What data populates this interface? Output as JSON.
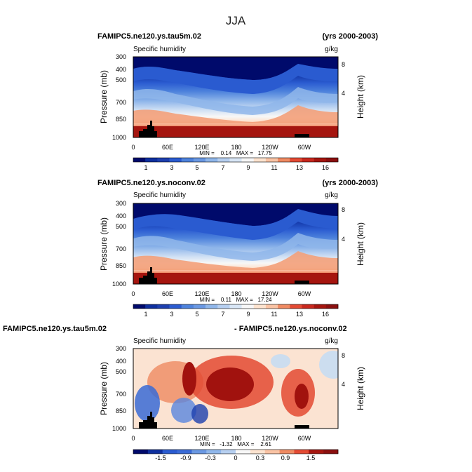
{
  "title": "JJA",
  "chart_data": [
    {
      "type": "heatmap",
      "run_label": "FAMIPC5.ne120.ys.tau5m.02",
      "years_label": "(yrs 2000-2003)",
      "variable": "Specific humidity",
      "units": "g/kg",
      "ylabel": "Pressure (mb)",
      "ylabel_right": "Height (km)",
      "ytick_labels": [
        "300",
        "400",
        "500",
        "700",
        "850",
        "1000"
      ],
      "yticks_right": [
        "8",
        "4"
      ],
      "xtick_labels": [
        "0",
        "60E",
        "120E",
        "180",
        "120W",
        "60W"
      ],
      "stats_text": "MIN =    0.14   MAX =   17.75",
      "min": 0.14,
      "max": 17.75,
      "levels": [
        1,
        2,
        3,
        4,
        5,
        6,
        7,
        8,
        9,
        10,
        11,
        12,
        13,
        14,
        15,
        16
      ],
      "colorbar_labels": [
        "1",
        "3",
        "5",
        "7",
        "9",
        "11",
        "13",
        "16"
      ],
      "colormap": "blue-white-red"
    },
    {
      "type": "heatmap",
      "run_label": "FAMIPC5.ne120.ys.noconv.02",
      "years_label": "(yrs 2000-2003)",
      "variable": "Specific humidity",
      "units": "g/kg",
      "ylabel": "Pressure (mb)",
      "ylabel_right": "Height (km)",
      "ytick_labels": [
        "300",
        "400",
        "500",
        "700",
        "850",
        "1000"
      ],
      "yticks_right": [
        "8",
        "4"
      ],
      "xtick_labels": [
        "0",
        "60E",
        "120E",
        "180",
        "120W",
        "60W"
      ],
      "stats_text": "MIN =    0.11   MAX =   17.24",
      "min": 0.11,
      "max": 17.24,
      "levels": [
        1,
        2,
        3,
        4,
        5,
        6,
        7,
        8,
        9,
        10,
        11,
        12,
        13,
        14,
        15,
        16
      ],
      "colorbar_labels": [
        "1",
        "3",
        "5",
        "7",
        "9",
        "11",
        "13",
        "16"
      ],
      "colormap": "blue-white-red"
    },
    {
      "type": "heatmap",
      "run_label": "FAMIPC5.ne120.ys.tau5m.02",
      "years_label": "- FAMIPC5.ne120.ys.noconv.02",
      "variable": "Specific humidity",
      "units": "g/kg",
      "ylabel": "Pressure (mb)",
      "ylabel_right": "Height (km)",
      "ytick_labels": [
        "300",
        "400",
        "500",
        "700",
        "850",
        "1000"
      ],
      "yticks_right": [
        "8",
        "4"
      ],
      "xtick_labels": [
        "0",
        "60E",
        "120E",
        "180",
        "120W",
        "60W"
      ],
      "stats_text": "MIN =   -1.32   MAX =    2.61",
      "min": -1.32,
      "max": 2.61,
      "levels": [
        -1.8,
        -1.5,
        -1.2,
        -0.9,
        -0.6,
        -0.3,
        0,
        0.3,
        0.6,
        0.9,
        1.2,
        1.5,
        1.8
      ],
      "colorbar_labels": [
        "-1.5",
        "-0.9",
        "-0.3",
        "0",
        "0.3",
        "0.9",
        "1.5"
      ],
      "colormap": "blue-white-red"
    }
  ]
}
